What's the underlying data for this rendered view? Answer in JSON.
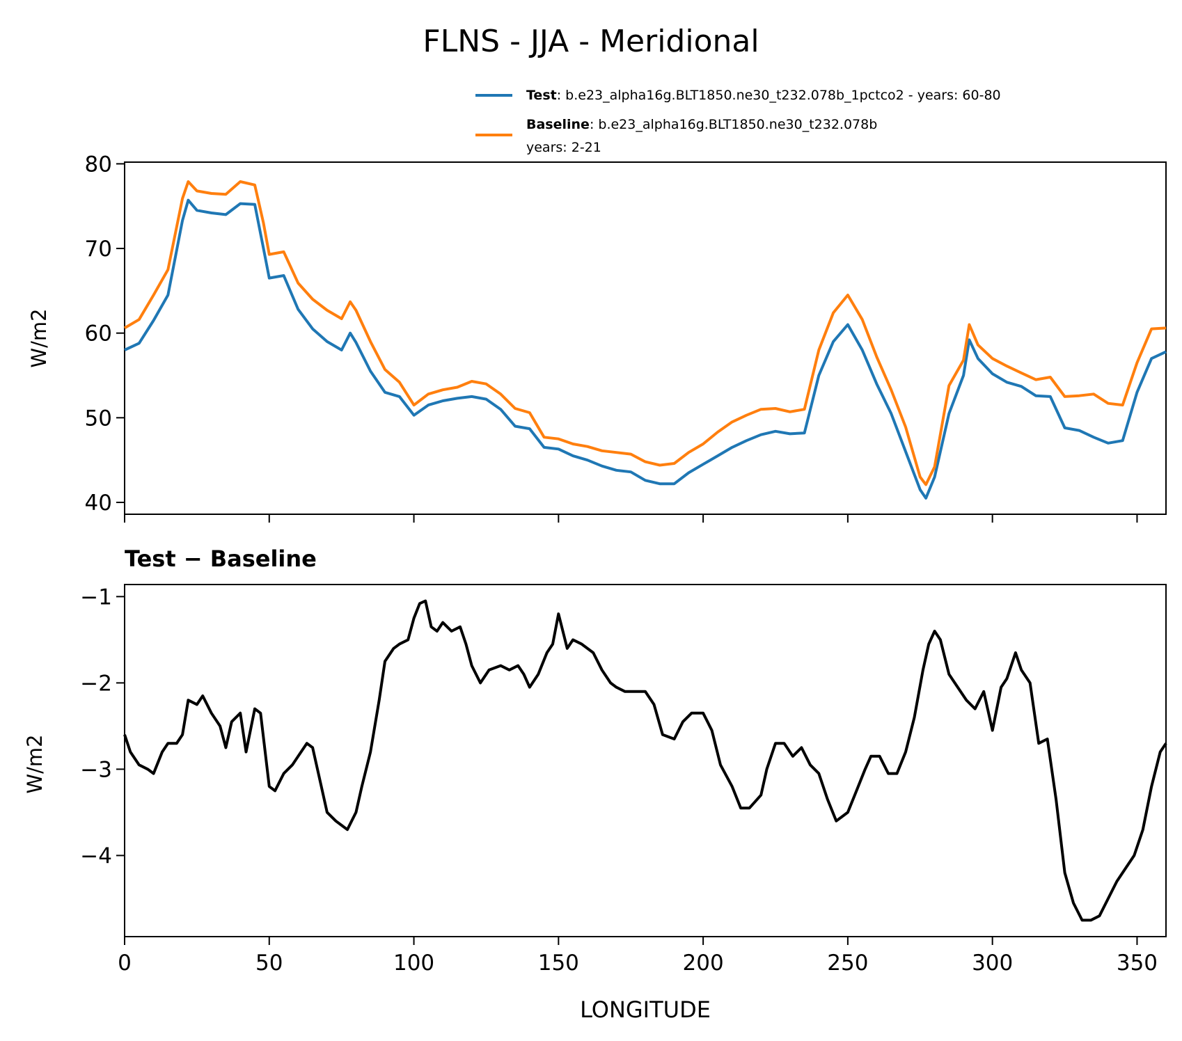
{
  "figure": {
    "title": "FLNS - JJA - Meridional"
  },
  "colors": {
    "test": "#1f77b4",
    "baseline": "#ff7f0e",
    "difference": "#000000"
  },
  "legend": {
    "placement": "above-top-right",
    "test_name": "Test",
    "test_desc": ": b.e23_alpha16g.BLT1850.ne30_t232.078b_1pctco2 - years: 60-80",
    "baseline_name": "Baseline",
    "baseline_desc": ": b.e23_alpha16g.BLT1850.ne30_t232.078b",
    "baseline_desc2": "years: 2-21"
  },
  "chart_data": [
    {
      "type": "line",
      "panel": "top",
      "title": "",
      "xlabel": "",
      "ylabel": "W/m2",
      "xlim": [
        0,
        360
      ],
      "ylim": [
        38.6,
        80.2
      ],
      "xticks": [
        0,
        50,
        100,
        150,
        200,
        250,
        300,
        350
      ],
      "yticks": [
        40,
        50,
        60,
        70,
        80
      ],
      "ytick_labels": [
        "40",
        "50",
        "60",
        "70",
        "80"
      ],
      "grid": false,
      "x": [
        0,
        5,
        10,
        15,
        20,
        22,
        25,
        30,
        35,
        40,
        45,
        48,
        50,
        55,
        60,
        65,
        70,
        75,
        78,
        80,
        85,
        90,
        95,
        100,
        105,
        110,
        115,
        120,
        125,
        130,
        135,
        140,
        145,
        150,
        155,
        160,
        165,
        170,
        175,
        180,
        185,
        190,
        195,
        200,
        205,
        210,
        215,
        220,
        225,
        230,
        235,
        240,
        245,
        250,
        255,
        260,
        265,
        270,
        275,
        277,
        280,
        285,
        290,
        292,
        295,
        300,
        305,
        310,
        315,
        320,
        325,
        330,
        335,
        340,
        345,
        350,
        355,
        360
      ],
      "series": [
        {
          "name": "Test",
          "color": "#1f77b4",
          "values": [
            58.0,
            58.8,
            61.5,
            64.5,
            73.3,
            75.7,
            74.5,
            74.2,
            74.0,
            75.3,
            75.2,
            70.0,
            66.5,
            66.8,
            62.8,
            60.5,
            59.0,
            58.0,
            60.0,
            58.9,
            55.5,
            53.0,
            52.5,
            50.3,
            51.5,
            52.0,
            52.3,
            52.5,
            52.2,
            51.0,
            49.0,
            48.7,
            46.5,
            46.3,
            45.5,
            45.0,
            44.3,
            43.8,
            43.6,
            42.6,
            42.2,
            42.2,
            43.5,
            44.5,
            45.5,
            46.5,
            47.3,
            48.0,
            48.4,
            48.1,
            48.2,
            55.0,
            59.0,
            61.0,
            58.0,
            54.0,
            50.5,
            46.0,
            41.5,
            40.5,
            43.0,
            50.5,
            55.0,
            59.2,
            57.0,
            55.2,
            54.2,
            53.7,
            52.6,
            52.5,
            48.8,
            48.5,
            47.7,
            47.0,
            47.3,
            53.0,
            57.0,
            57.8
          ]
        },
        {
          "name": "Baseline",
          "color": "#ff7f0e",
          "values": [
            60.6,
            61.6,
            64.5,
            67.5,
            75.9,
            77.9,
            76.8,
            76.5,
            76.4,
            77.9,
            77.5,
            73.0,
            69.3,
            69.6,
            65.9,
            64.0,
            62.7,
            61.7,
            63.7,
            62.7,
            59.0,
            55.7,
            54.2,
            51.5,
            52.8,
            53.3,
            53.6,
            54.3,
            54.0,
            52.8,
            51.1,
            50.6,
            47.7,
            47.5,
            46.9,
            46.6,
            46.1,
            45.9,
            45.7,
            44.8,
            44.4,
            44.6,
            45.9,
            46.9,
            48.3,
            49.5,
            50.3,
            51.0,
            51.1,
            50.7,
            51.0,
            58.0,
            62.4,
            64.5,
            61.6,
            57.2,
            53.3,
            48.9,
            43.0,
            42.1,
            44.2,
            53.8,
            56.8,
            61.0,
            58.6,
            57.0,
            56.1,
            55.3,
            54.5,
            54.8,
            52.5,
            52.6,
            52.8,
            51.7,
            51.5,
            56.5,
            60.5,
            60.6
          ]
        }
      ]
    },
    {
      "type": "line",
      "panel": "bottom",
      "title": "Test − Baseline",
      "xlabel": "LONGITUDE",
      "ylabel": "W/m2",
      "xlim": [
        0,
        360
      ],
      "ylim": [
        -4.94,
        -0.86
      ],
      "xticks": [
        0,
        50,
        100,
        150,
        200,
        250,
        300,
        350
      ],
      "xtick_labels": [
        "0",
        "50",
        "100",
        "150",
        "200",
        "250",
        "300",
        "350"
      ],
      "yticks": [
        -1,
        -2,
        -3,
        -4
      ],
      "ytick_labels": [
        "−1",
        "−2",
        "−3",
        "−4"
      ],
      "grid": false,
      "x": [
        0,
        2,
        5,
        8,
        10,
        13,
        15,
        18,
        20,
        22,
        25,
        27,
        30,
        33,
        35,
        37,
        40,
        42,
        45,
        47,
        50,
        52,
        55,
        58,
        60,
        63,
        65,
        68,
        70,
        73,
        75,
        77,
        80,
        82,
        85,
        88,
        90,
        93,
        95,
        98,
        100,
        102,
        104,
        106,
        108,
        110,
        113,
        116,
        118,
        120,
        123,
        126,
        130,
        133,
        136,
        138,
        140,
        143,
        146,
        148,
        150,
        153,
        155,
        158,
        162,
        165,
        168,
        170,
        173,
        176,
        180,
        183,
        186,
        190,
        193,
        196,
        200,
        203,
        206,
        210,
        213,
        216,
        220,
        222,
        225,
        228,
        231,
        234,
        237,
        240,
        243,
        246,
        248,
        250,
        253,
        256,
        258,
        261,
        264,
        267,
        270,
        273,
        276,
        278,
        280,
        282,
        285,
        288,
        291,
        294,
        297,
        300,
        303,
        305,
        308,
        310,
        313,
        316,
        319,
        322,
        325,
        328,
        331,
        334,
        337,
        340,
        343,
        346,
        349,
        352,
        355,
        358,
        360
      ],
      "series": [
        {
          "name": "Test − Baseline",
          "color": "#000000",
          "values": [
            -2.6,
            -2.8,
            -2.95,
            -3.0,
            -3.05,
            -2.8,
            -2.7,
            -2.7,
            -2.6,
            -2.2,
            -2.25,
            -2.15,
            -2.35,
            -2.5,
            -2.75,
            -2.45,
            -2.35,
            -2.8,
            -2.3,
            -2.35,
            -3.2,
            -3.25,
            -3.05,
            -2.95,
            -2.85,
            -2.7,
            -2.75,
            -3.2,
            -3.5,
            -3.6,
            -3.65,
            -3.7,
            -3.5,
            -3.2,
            -2.8,
            -2.2,
            -1.75,
            -1.6,
            -1.55,
            -1.5,
            -1.25,
            -1.08,
            -1.05,
            -1.35,
            -1.4,
            -1.3,
            -1.4,
            -1.35,
            -1.55,
            -1.8,
            -2.0,
            -1.85,
            -1.8,
            -1.85,
            -1.8,
            -1.9,
            -2.05,
            -1.9,
            -1.65,
            -1.55,
            -1.2,
            -1.6,
            -1.5,
            -1.55,
            -1.65,
            -1.85,
            -2.0,
            -2.05,
            -2.1,
            -2.1,
            -2.1,
            -2.25,
            -2.6,
            -2.65,
            -2.45,
            -2.35,
            -2.35,
            -2.55,
            -2.95,
            -3.2,
            -3.45,
            -3.45,
            -3.3,
            -3.0,
            -2.7,
            -2.7,
            -2.85,
            -2.75,
            -2.95,
            -3.05,
            -3.35,
            -3.6,
            -3.55,
            -3.5,
            -3.25,
            -3.0,
            -2.85,
            -2.85,
            -3.05,
            -3.05,
            -2.8,
            -2.4,
            -1.85,
            -1.55,
            -1.4,
            -1.5,
            -1.9,
            -2.05,
            -2.2,
            -2.3,
            -2.1,
            -2.55,
            -2.05,
            -1.95,
            -1.65,
            -1.85,
            -2.0,
            -2.7,
            -2.65,
            -3.35,
            -4.2,
            -4.55,
            -4.75,
            -4.75,
            -4.7,
            -4.5,
            -4.3,
            -4.15,
            -4.0,
            -3.7,
            -3.2,
            -2.8,
            -2.7
          ]
        }
      ]
    }
  ]
}
